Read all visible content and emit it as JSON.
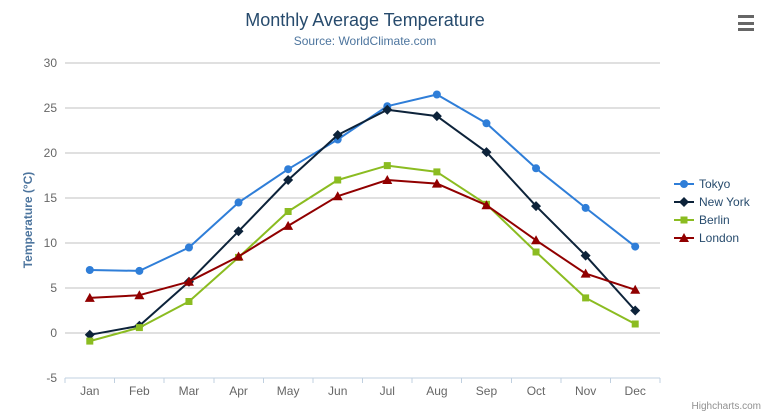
{
  "chart_data": {
    "type": "line",
    "title": "Monthly Average Temperature",
    "subtitle": "Source: WorldClimate.com",
    "categories": [
      "Jan",
      "Feb",
      "Mar",
      "Apr",
      "May",
      "Jun",
      "Jul",
      "Aug",
      "Sep",
      "Oct",
      "Nov",
      "Dec"
    ],
    "xlabel": "",
    "ylabel": "Temperature (°C)",
    "ylim": [
      -5,
      30
    ],
    "ytick_interval": 5,
    "grid": true,
    "legend_position": "right",
    "series": [
      {
        "name": "Tokyo",
        "color": "#2f7ed8",
        "marker": "circle",
        "values": [
          7.0,
          6.9,
          9.5,
          14.5,
          18.2,
          21.5,
          25.2,
          26.5,
          23.3,
          18.3,
          13.9,
          9.6
        ]
      },
      {
        "name": "New York",
        "color": "#0d233a",
        "marker": "diamond",
        "values": [
          -0.2,
          0.8,
          5.7,
          11.3,
          17.0,
          22.0,
          24.8,
          24.1,
          20.1,
          14.1,
          8.6,
          2.5
        ]
      },
      {
        "name": "Berlin",
        "color": "#8bbc21",
        "marker": "square",
        "values": [
          -0.9,
          0.6,
          3.5,
          8.4,
          13.5,
          17.0,
          18.6,
          17.9,
          14.3,
          9.0,
          3.9,
          1.0
        ]
      },
      {
        "name": "London",
        "color": "#910000",
        "marker": "triangle",
        "values": [
          3.9,
          4.2,
          5.7,
          8.5,
          11.9,
          15.2,
          17.0,
          16.6,
          14.2,
          10.3,
          6.6,
          4.8
        ]
      }
    ],
    "colors": {
      "title": "#274b6d",
      "subtitle": "#4d759e",
      "axis_label": "#666666",
      "gridline": "#c0c0c0",
      "axis_line": "#c0d0e0"
    },
    "credit": "Highcharts.com"
  }
}
